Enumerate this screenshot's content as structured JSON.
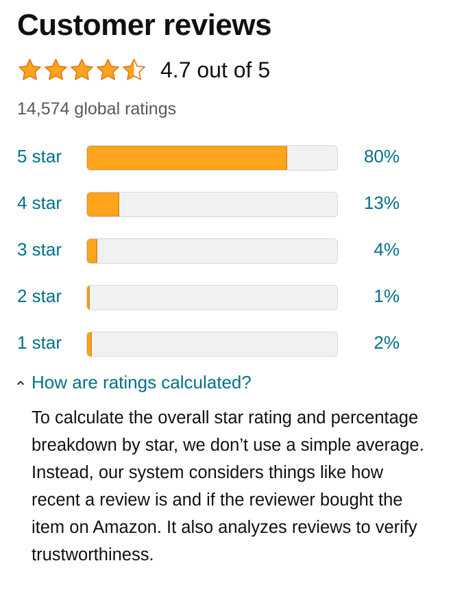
{
  "header": {
    "title": "Customer reviews"
  },
  "summary": {
    "rating_value": 4.7,
    "rating_text": "4.7 out of 5",
    "global_ratings": "14,574 global ratings",
    "star_icons": [
      "star-full-icon",
      "star-full-icon",
      "star-full-icon",
      "star-full-icon",
      "star-half-icon"
    ]
  },
  "histogram": [
    {
      "label": "5 star",
      "percent": 80,
      "percent_label": "80%"
    },
    {
      "label": "4 star",
      "percent": 13,
      "percent_label": "13%"
    },
    {
      "label": "3 star",
      "percent": 4,
      "percent_label": "4%"
    },
    {
      "label": "2 star",
      "percent": 1,
      "percent_label": "1%"
    },
    {
      "label": "1 star",
      "percent": 2,
      "percent_label": "2%"
    }
  ],
  "how_calculated": {
    "label": "How are ratings calculated?",
    "expanded": true,
    "icon": "chevron-up-icon",
    "body": "To calculate the overall star rating and percentage breakdown by star, we don’t use a simple average. Instead, our system considers things like how recent a review is and if the reviewer bought the item on Amazon. It also analyzes reviews to verify trustworthiness."
  },
  "colors": {
    "star": "#ffa41c",
    "star_stroke": "#de7921",
    "bar_fill": "#ffa41c",
    "bar_track": "#f0f2f2",
    "link": "#007185",
    "muted_text": "#565959"
  }
}
